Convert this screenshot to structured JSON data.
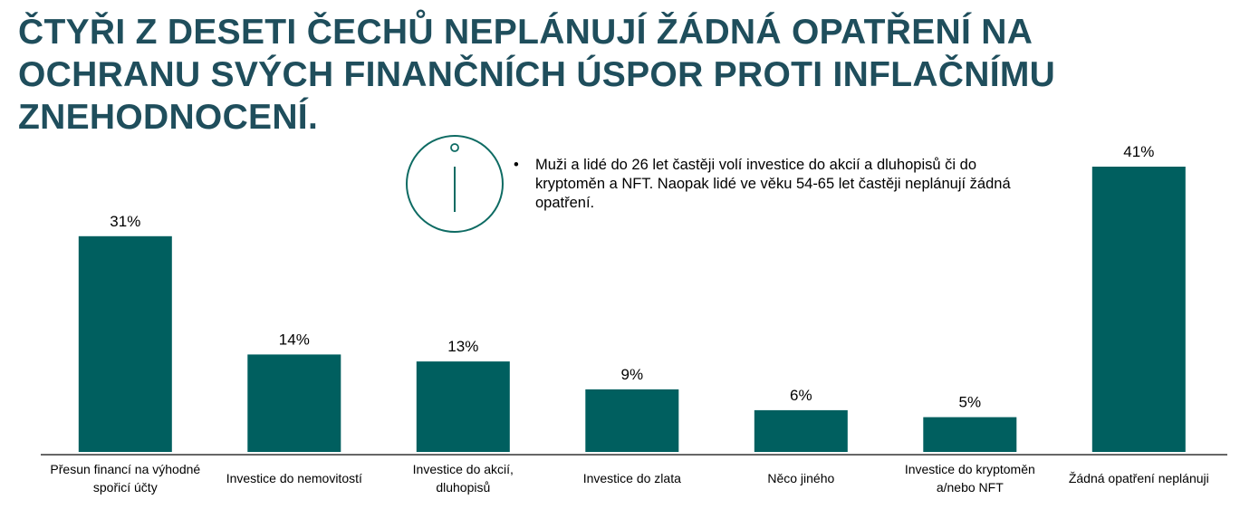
{
  "title": "ČTYŘI Z DESETI ČECHŮ NEPLÁNUJÍ ŽÁDNÁ OPATŘENÍ NA OCHRANU SVÝCH FINANČNÍCH ÚSPOR PROTI INFLAČNÍMU ZNEHODNOCENÍ.",
  "note": {
    "bullet": "•",
    "text": "Muži a lidé do 26 let častěji volí investice do akcií a dluhopisů či do kryptoměn a NFT. Naopak lidé ve věku 54-65 let častěji neplánují žádná opatření.",
    "icon": "info-icon"
  },
  "colors": {
    "bar": "#005f5f",
    "title": "#1f4e5c",
    "icon": "#0e6b63"
  },
  "chart_data": {
    "type": "bar",
    "categories": [
      [
        "Přesun financí na výhodné",
        "spořicí účty"
      ],
      [
        "Investice do nemovitostí"
      ],
      [
        "Investice do akcií,",
        "dluhopisů"
      ],
      [
        "Investice do zlata"
      ],
      [
        "Něco jiného"
      ],
      [
        "Investice do kryptoměn",
        "a/nebo NFT"
      ],
      [
        "Žádná opatření neplánuji"
      ]
    ],
    "values": [
      31,
      14,
      13,
      9,
      6,
      5,
      41
    ],
    "value_labels": [
      "31%",
      "14%",
      "13%",
      "9%",
      "6%",
      "5%",
      "41%"
    ],
    "unit": "%",
    "ylim": [
      0,
      41
    ],
    "grid": false,
    "legend": "none"
  }
}
